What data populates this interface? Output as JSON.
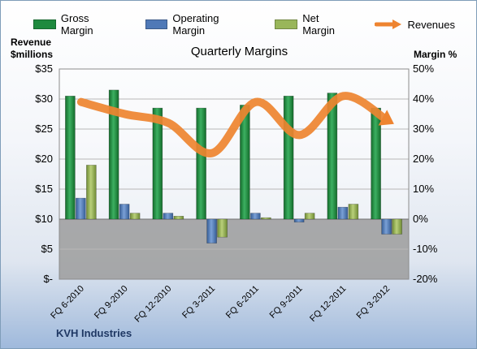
{
  "legend": {
    "gross": "Gross Margin",
    "operating": "Operating Margin",
    "net": "Net Margin",
    "revenues": "Revenues"
  },
  "left_axis_title_line1": "Revenue",
  "left_axis_title_line2": "$millions",
  "right_axis_title": "Margin %",
  "company": "KVH Industries",
  "colors": {
    "gross": "#1e8a3e",
    "operating": "#4f79b7",
    "net": "#99b65a",
    "revenues": "#ee8430",
    "company": "#1f3864"
  },
  "chart_data": {
    "type": "bar",
    "title": "Quarterly Margins",
    "categories": [
      "FQ 6-2010",
      "FQ 9-2010",
      "FQ 12-2010",
      "FQ 3-2011",
      "FQ 6-2011",
      "FQ 9-2011",
      "FQ 12-2011",
      "FQ 3-2012"
    ],
    "series": [
      {
        "name": "Gross Margin",
        "axis": "right",
        "values": [
          41,
          43,
          37,
          37,
          38,
          41,
          42,
          37
        ]
      },
      {
        "name": "Operating Margin",
        "axis": "right",
        "values": [
          7,
          5,
          2,
          -8,
          2,
          -1,
          4,
          -5
        ]
      },
      {
        "name": "Net Margin",
        "axis": "right",
        "values": [
          18,
          2,
          1,
          -6,
          0.5,
          2,
          5,
          -5
        ]
      },
      {
        "name": "Revenues",
        "axis": "left",
        "type": "line",
        "values": [
          29.5,
          27.5,
          26,
          21,
          29.5,
          24,
          30.5,
          26.5
        ]
      }
    ],
    "left_axis": {
      "label": "Revenue $millions",
      "ylim": [
        0,
        35
      ],
      "ticks": [
        "$-",
        "$5",
        "$10",
        "$15",
        "$20",
        "$25",
        "$30",
        "$35"
      ]
    },
    "right_axis": {
      "label": "Margin %",
      "ylim": [
        -20,
        50
      ],
      "ticks": [
        "-20%",
        "-10%",
        "0%",
        "10%",
        "20%",
        "30%",
        "40%",
        "50%"
      ]
    },
    "grid": true,
    "legend_position": "top"
  }
}
